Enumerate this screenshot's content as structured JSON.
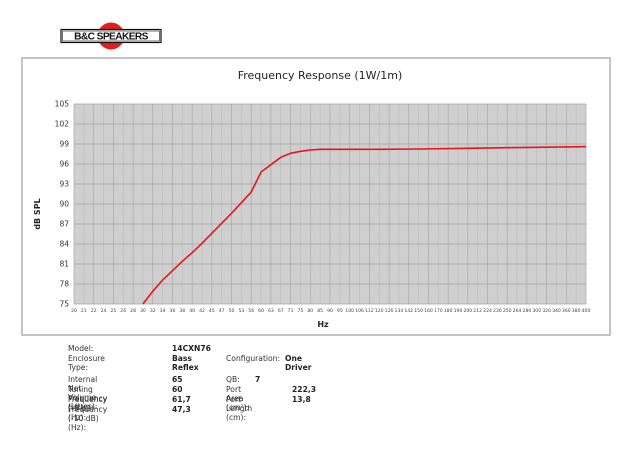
{
  "brand": {
    "logo_text": "B&C SPEAKERS",
    "logo_circle_color": "#e02020"
  },
  "chart_data": {
    "type": "line",
    "title": "Frequency Response (1W/1m)",
    "xlabel": "Hz",
    "ylabel": "dB SPL",
    "x_scale": "log",
    "xlim": [
      20,
      400
    ],
    "ylim": [
      75,
      105
    ],
    "grid": true,
    "legend": "none",
    "y_ticks": [
      105,
      102,
      99,
      96,
      93,
      90,
      87,
      84,
      81,
      78,
      75
    ],
    "x_ticks": [
      "20",
      "21",
      "22",
      "24",
      "25",
      "26",
      "28",
      "30",
      "32",
      "34",
      "36",
      "38",
      "40",
      "42",
      "45",
      "47",
      "50",
      "53",
      "56",
      "60",
      "63",
      "67",
      "71",
      "75",
      "80",
      "85",
      "90",
      "95",
      "100",
      "106",
      "112",
      "120",
      "126",
      "134",
      "142",
      "150",
      "160",
      "170",
      "180",
      "190",
      "200",
      "212",
      "224",
      "236",
      "250",
      "264",
      "280",
      "300",
      "320",
      "340",
      "360",
      "380",
      "400"
    ],
    "series": [
      {
        "name": "SPL",
        "color": "#e8141c",
        "x": [
          30,
          32,
          34,
          36,
          38,
          40,
          42,
          45,
          47,
          50,
          53,
          56,
          60,
          63,
          67,
          71,
          75,
          80,
          85,
          90,
          100,
          120,
          150,
          200,
          250,
          300,
          400
        ],
        "values": [
          75.0,
          76.9,
          78.6,
          80.0,
          81.4,
          82.7,
          84.1,
          85.6,
          87.1,
          88.6,
          90.2,
          91.8,
          94.8,
          95.9,
          97.0,
          97.6,
          97.9,
          98.1,
          98.2,
          98.2,
          98.2,
          98.2,
          98.25,
          98.35,
          98.45,
          98.5,
          98.6
        ]
      }
    ]
  },
  "specs": {
    "model": {
      "label": "Model:",
      "value": "14CXN76"
    },
    "enclosure": {
      "label": "Enclosure Type:",
      "value": "Bass Reflex"
    },
    "configuration": {
      "label": "Configuration:",
      "value": "One Driver"
    },
    "volume": {
      "label": "Internal Net Volume (Litres):",
      "value": "65"
    },
    "qb": {
      "label": "QB:",
      "value": "7"
    },
    "tuning": {
      "label": "Tuning Frequency (Hz):",
      "value": "60"
    },
    "port_area": {
      "label": "Port Area (cm²):",
      "value": "222,3"
    },
    "f3": {
      "label": "Frequency (-3 dB) (Hz):",
      "value": "61,7"
    },
    "port_length": {
      "label": "Port Length (cm):",
      "value": "13,8"
    },
    "f10": {
      "label": "Frequency (-10 dB) (Hz):",
      "value": "47,3"
    }
  }
}
